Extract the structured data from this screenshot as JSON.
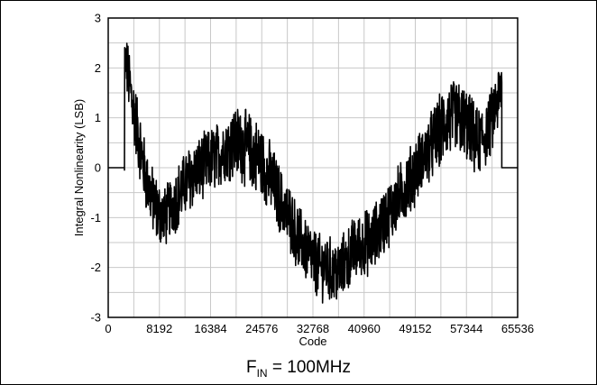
{
  "chart_data": {
    "type": "line",
    "title": "",
    "xlabel": "Code",
    "ylabel": "Integral Nonlinearity (LSB)",
    "xlim": [
      0,
      65536
    ],
    "ylim": [
      -3,
      3
    ],
    "xticks": [
      0,
      8192,
      16384,
      24576,
      32768,
      40960,
      49152,
      57344,
      65536
    ],
    "yticks": [
      -3,
      -2,
      -1,
      0,
      1,
      2,
      3
    ],
    "grid": true,
    "series": [
      {
        "values_note_free": true,
        "line_color": "#000000",
        "x": [
          0,
          2600,
          2600,
          3000,
          3500,
          4000,
          5000,
          6000,
          7000,
          8000,
          9000,
          10000,
          11000,
          12000,
          13000,
          14000,
          15000,
          16000,
          17000,
          18000,
          19000,
          20000,
          21000,
          22000,
          23000,
          24000,
          25000,
          26000,
          27000,
          28000,
          29000,
          30000,
          31000,
          32000,
          33000,
          34000,
          35000,
          36000,
          37000,
          38000,
          39000,
          40000,
          41000,
          42000,
          43000,
          44000,
          45000,
          46000,
          47000,
          48000,
          49000,
          50000,
          51000,
          52000,
          53000,
          54000,
          55000,
          56000,
          57000,
          58000,
          59000,
          60000,
          61000,
          62000,
          63000,
          63000,
          65536
        ],
        "center": [
          0,
          0,
          2.2,
          2.0,
          1.6,
          1.2,
          0.5,
          -0.2,
          -0.6,
          -0.9,
          -1.0,
          -0.8,
          -0.6,
          -0.4,
          -0.2,
          -0.1,
          0.0,
          0.1,
          0.2,
          0.3,
          0.4,
          0.5,
          0.5,
          0.4,
          0.3,
          0.2,
          0.0,
          -0.2,
          -0.5,
          -0.8,
          -1.0,
          -1.3,
          -1.5,
          -1.7,
          -1.9,
          -2.0,
          -2.0,
          -2.1,
          -2.1,
          -1.9,
          -1.7,
          -1.6,
          -1.5,
          -1.5,
          -1.3,
          -1.1,
          -0.9,
          -0.7,
          -0.5,
          -0.3,
          -0.1,
          0.1,
          0.3,
          0.5,
          0.7,
          0.9,
          1.0,
          1.0,
          0.9,
          0.7,
          0.5,
          0.6,
          0.8,
          1.2,
          1.6,
          0,
          0
        ],
        "band": [
          0,
          0,
          0.4,
          0.55,
          0.6,
          0.65,
          0.65,
          0.6,
          0.6,
          0.6,
          0.55,
          0.55,
          0.6,
          0.6,
          0.6,
          0.6,
          0.6,
          0.6,
          0.6,
          0.6,
          0.6,
          0.65,
          0.7,
          0.7,
          0.7,
          0.7,
          0.7,
          0.65,
          0.65,
          0.6,
          0.6,
          0.6,
          0.6,
          0.6,
          0.6,
          0.6,
          0.6,
          0.6,
          0.6,
          0.6,
          0.6,
          0.6,
          0.6,
          0.6,
          0.6,
          0.6,
          0.6,
          0.6,
          0.6,
          0.6,
          0.6,
          0.6,
          0.6,
          0.65,
          0.7,
          0.7,
          0.7,
          0.7,
          0.7,
          0.7,
          0.65,
          0.6,
          0.6,
          0.6,
          0.6,
          0,
          0
        ]
      }
    ]
  },
  "caption": {
    "prefix": "F",
    "subscript": "IN",
    "suffix": " = 100MHz"
  }
}
